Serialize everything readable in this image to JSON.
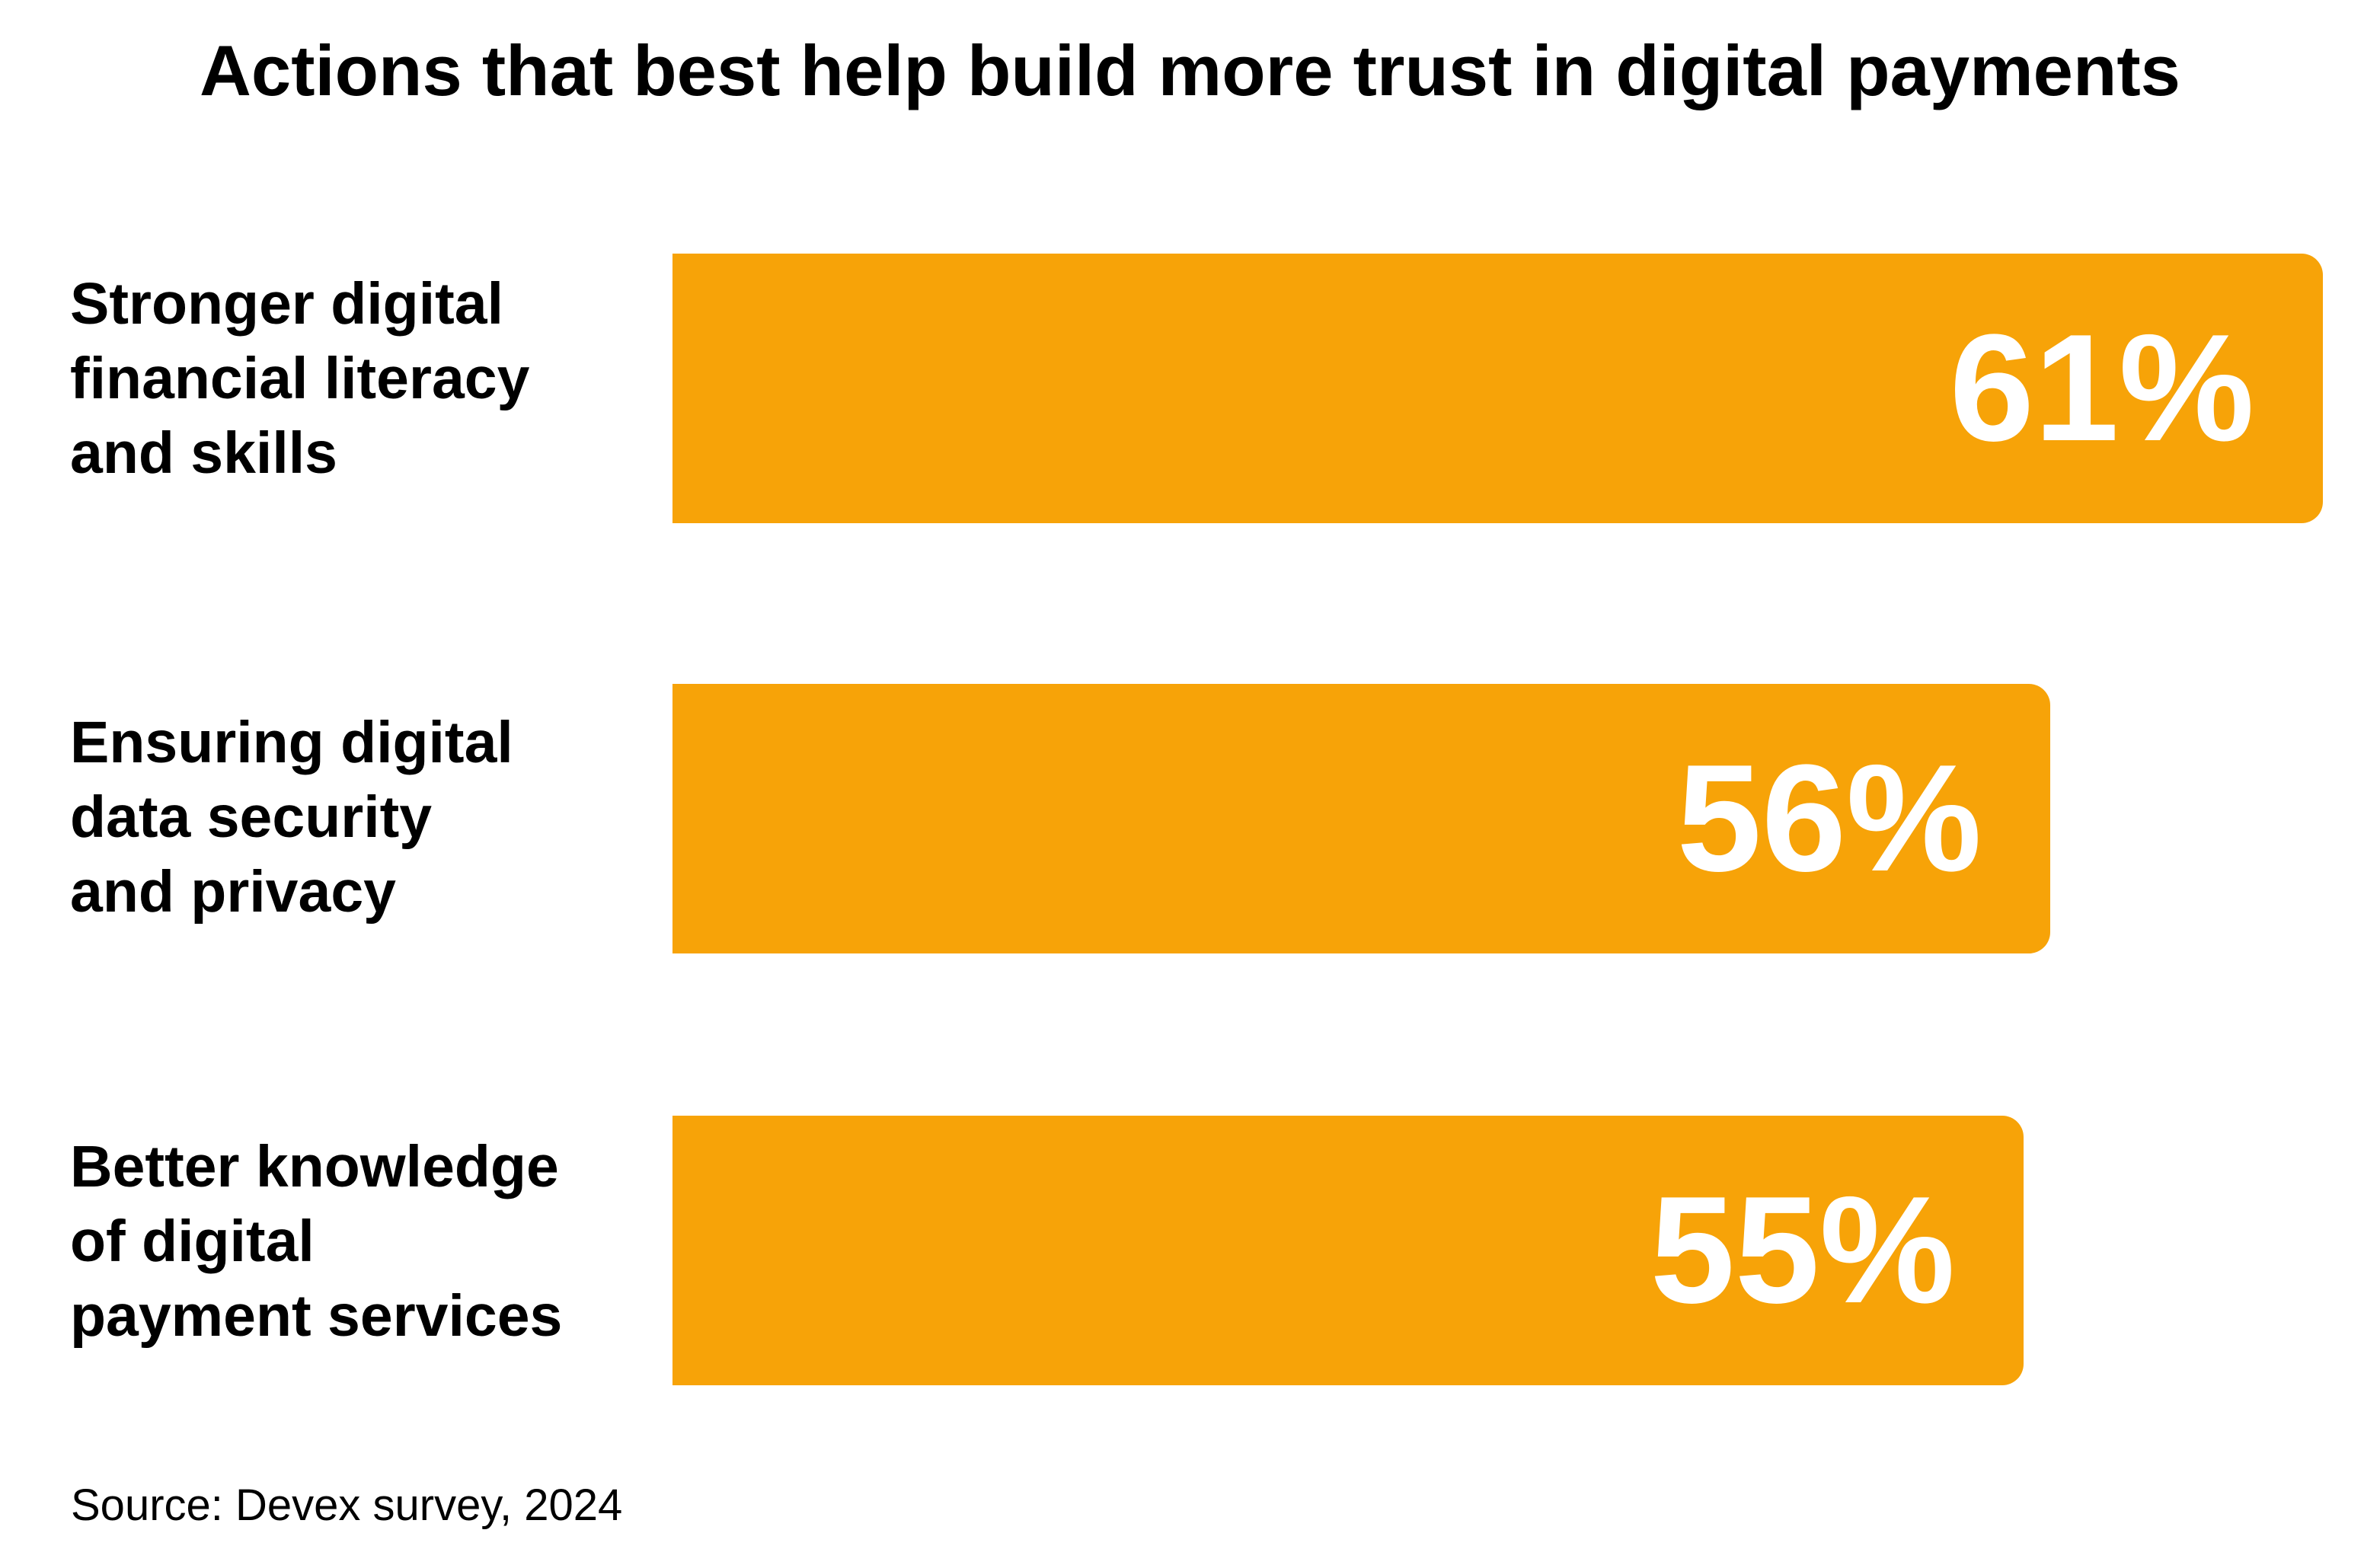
{
  "chart_data": {
    "type": "bar",
    "orientation": "horizontal",
    "title": "Actions that best help build more trust in digital payments",
    "categories": [
      "Stronger digital financial literacy and skills",
      "Ensuring digital data security and privacy",
      "Better knowledge of digital payment services"
    ],
    "category_lines": [
      [
        "Stronger digital",
        "financial literacy",
        "and skills"
      ],
      [
        "Ensuring digital",
        "data security",
        "and privacy"
      ],
      [
        "Better knowledge",
        "of digital",
        "payment services"
      ]
    ],
    "values": [
      61,
      56,
      55
    ],
    "value_labels": [
      "61%",
      "56%",
      "55%"
    ],
    "unit": "%",
    "bar_color": "#F7A308",
    "value_label_color": "#ffffff",
    "xlabel": "",
    "ylabel": "",
    "grid": false,
    "source": "Source: Devex survey, 2024"
  }
}
